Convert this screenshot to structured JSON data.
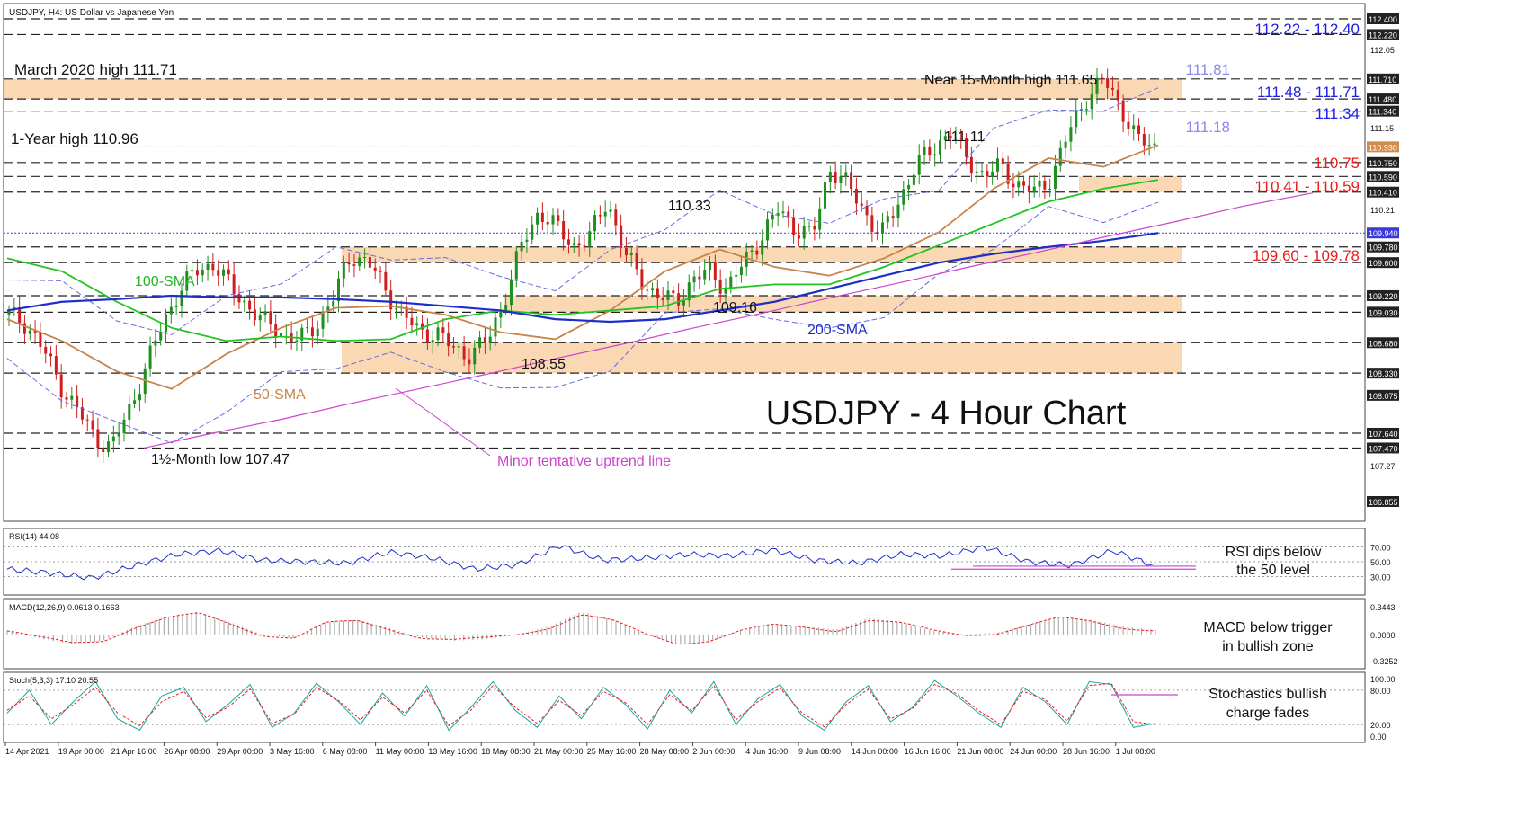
{
  "chart_data": [
    {
      "type": "line",
      "panel": "price",
      "symbol_header": "USDJPY, H4:  US Dollar vs Japanese Yen",
      "title": "USDJPY - 4 Hour Chart",
      "ylim": [
        106.7,
        112.45
      ],
      "y_ticks": [
        "112.400",
        "112.220",
        "112.05",
        "111.710",
        "111.480",
        "111.340",
        "111.15",
        "110.930",
        "110.750",
        "110.590",
        "110.410",
        "110.21",
        "109.940",
        "109.780",
        "109.600",
        "109.220",
        "109.030",
        "108.680",
        "108.330",
        "108.075",
        "107.640",
        "107.470",
        "107.27",
        "106.855"
      ],
      "x_ticks": [
        "14 Apr 2021",
        "19 Apr 00:00",
        "21 Apr 16:00",
        "26 Apr 08:00",
        "29 Apr 00:00",
        "3 May 16:00",
        "6 May 08:00",
        "11 May 00:00",
        "13 May 16:00",
        "18 May 08:00",
        "21 May 00:00",
        "25 May 16:00",
        "28 May 08:00",
        "2 Jun 00:00",
        "4 Jun 16:00",
        "9 Jun 08:00",
        "14 Jun 00:00",
        "16 Jun 16:00",
        "21 Jun 08:00",
        "24 Jun 00:00",
        "28 Jun 16:00",
        "1 Jul 08:00"
      ],
      "series": [
        {
          "name": "50-SMA",
          "color": "#c8844a",
          "y": [
            108.95,
            108.7,
            108.35,
            108.15,
            108.55,
            108.85,
            109.08,
            109.1,
            109.0,
            108.8,
            108.72,
            109.05,
            109.5,
            109.75,
            109.55,
            109.45,
            109.65,
            109.95,
            110.45,
            110.8,
            110.7,
            110.95
          ]
        },
        {
          "name": "100-SMA",
          "color": "#22c422",
          "y": [
            109.65,
            109.5,
            109.15,
            108.85,
            108.7,
            108.75,
            108.7,
            108.72,
            108.95,
            109.05,
            109.0,
            109.05,
            109.1,
            109.3,
            109.35,
            109.35,
            109.55,
            109.8,
            110.05,
            110.3,
            110.45,
            110.55
          ]
        },
        {
          "name": "200-SMA",
          "color": "#1e2fc8",
          "y": [
            109.05,
            109.15,
            109.18,
            109.22,
            109.2,
            109.2,
            109.18,
            109.15,
            109.1,
            109.05,
            108.95,
            108.92,
            108.95,
            109.05,
            109.15,
            109.3,
            109.45,
            109.6,
            109.7,
            109.78,
            109.85,
            109.94
          ]
        },
        {
          "name": "Minor tentative uptrend line",
          "color": "#cc44cc",
          "y": [
            107.47,
            107.64,
            107.8,
            107.98,
            108.15,
            108.32,
            108.5,
            108.67,
            108.85,
            109.02,
            109.2,
            109.37,
            109.55,
            109.72,
            109.9,
            110.07,
            110.25,
            110.4
          ]
        }
      ],
      "zones": [
        {
          "low": 111.48,
          "high": 111.71,
          "label": "111.48 - 111.71",
          "label_color": "#1e1ee6"
        },
        {
          "low": 110.41,
          "high": 110.59,
          "label": "110.41 - 110.59",
          "label_color": "#e61e1e"
        },
        {
          "low": 109.6,
          "high": 109.78,
          "label": "109.60 - 109.78",
          "label_color": "#e61e1e"
        },
        {
          "low": 109.03,
          "high": 109.22,
          "label": "",
          "label_color": ""
        },
        {
          "low": 108.33,
          "high": 108.68,
          "label": "",
          "label_color": ""
        }
      ],
      "level_labels": [
        {
          "text": "112.22 - 112.40",
          "color": "#1e1ee6"
        },
        {
          "text": "111.34",
          "color": "#1e1ee6"
        },
        {
          "text": "110.75",
          "color": "#e61e1e"
        },
        {
          "text": "111.81",
          "color": "#8a8af0"
        },
        {
          "text": "111.18",
          "color": "#8a8af0"
        }
      ],
      "annotations": [
        {
          "text": "March 2020 high 111.71",
          "color": "#111111"
        },
        {
          "text": "Near 15-Month high 111.65",
          "color": "#111111"
        },
        {
          "text": "1-Year high 110.96",
          "color": "#111111"
        },
        {
          "text": "111.11",
          "color": "#111111"
        },
        {
          "text": "110.33",
          "color": "#111111"
        },
        {
          "text": "100-SMA",
          "color": "#22b422"
        },
        {
          "text": "109.16",
          "color": "#111111"
        },
        {
          "text": "200-SMA",
          "color": "#1e2fc8"
        },
        {
          "text": "108.55",
          "color": "#111111"
        },
        {
          "text": "50-SMA",
          "color": "#c8844a"
        },
        {
          "text": "1½-Month low 107.47",
          "color": "#111111"
        },
        {
          "text": "Minor tentative uptrend line",
          "color": "#cc44cc"
        }
      ],
      "highlight_labels": [
        "110.930",
        "109.940"
      ]
    },
    {
      "type": "line",
      "panel": "rsi",
      "header": "RSI(14) 44.08",
      "ylim": [
        10,
        90
      ],
      "y_ticks": [
        "70.00",
        "50.00",
        "30.00"
      ],
      "series": [
        {
          "name": "",
          "color": "#1e2fc8",
          "y": [
            40,
            35,
            28,
            45,
            60,
            65,
            52,
            50,
            48,
            63,
            55,
            40,
            46,
            72,
            52,
            55,
            60,
            58,
            66,
            52,
            48,
            60,
            58,
            70,
            50,
            45,
            65,
            44
          ]
        }
      ],
      "annotation": [
        "RSI dips below",
        "the 50 level"
      ]
    },
    {
      "type": "bar",
      "panel": "macd",
      "header": "MACD(12,26,9) 0.0613 0.1663",
      "ylim": [
        -0.38,
        0.4
      ],
      "y_ticks": [
        "0.3443",
        "0.0000",
        "-0.3252"
      ],
      "series": [
        {
          "name": "",
          "color": "#b0b0b0",
          "values": [
            0.05,
            -0.05,
            -0.12,
            -0.08,
            0.1,
            0.22,
            0.28,
            0.15,
            0.0,
            -0.05,
            0.15,
            0.18,
            0.08,
            -0.04,
            -0.08,
            -0.06,
            0.0,
            0.1,
            0.28,
            0.18,
            0.0,
            -0.12,
            -0.08,
            0.05,
            0.12,
            0.1,
            0.06,
            0.2,
            0.15,
            0.05,
            0.0,
            0.02,
            0.12,
            0.22,
            0.18,
            0.1,
            0.06
          ]
        }
      ],
      "annotation": [
        "MACD below trigger",
        "in bullish zone"
      ]
    },
    {
      "type": "line",
      "panel": "stochastic",
      "header": "Stoch(5,3,3) 17.10 20.55",
      "ylim": [
        -5,
        105
      ],
      "y_ticks": [
        "100.00",
        "80.00",
        "20.00",
        "0.00"
      ],
      "series": [
        {
          "name": "",
          "color": "#1aa6a0",
          "y": [
            40,
            80,
            20,
            60,
            95,
            30,
            10,
            70,
            85,
            25,
            55,
            90,
            15,
            40,
            92,
            60,
            20,
            75,
            35,
            88,
            10,
            50,
            95,
            45,
            15,
            70,
            30,
            85,
            55,
            12,
            80,
            40,
            95,
            20,
            65,
            90,
            35,
            10,
            60,
            88,
            25,
            50,
            97,
            70,
            40,
            15,
            85,
            60,
            20,
            95,
            90,
            15,
            22
          ]
        },
        {
          "name": "",
          "color": "#e61e1e",
          "y": [
            45,
            70,
            30,
            55,
            85,
            40,
            18,
            60,
            78,
            32,
            50,
            82,
            22,
            38,
            85,
            62,
            28,
            68,
            40,
            80,
            18,
            45,
            88,
            50,
            22,
            62,
            36,
            78,
            58,
            20,
            72,
            44,
            88,
            28,
            60,
            84,
            40,
            16,
            55,
            82,
            30,
            48,
            90,
            74,
            44,
            20,
            78,
            64,
            26,
            88,
            92,
            25,
            20
          ]
        }
      ],
      "annotation": [
        "Stochastics bullish",
        "charge fades"
      ]
    }
  ]
}
